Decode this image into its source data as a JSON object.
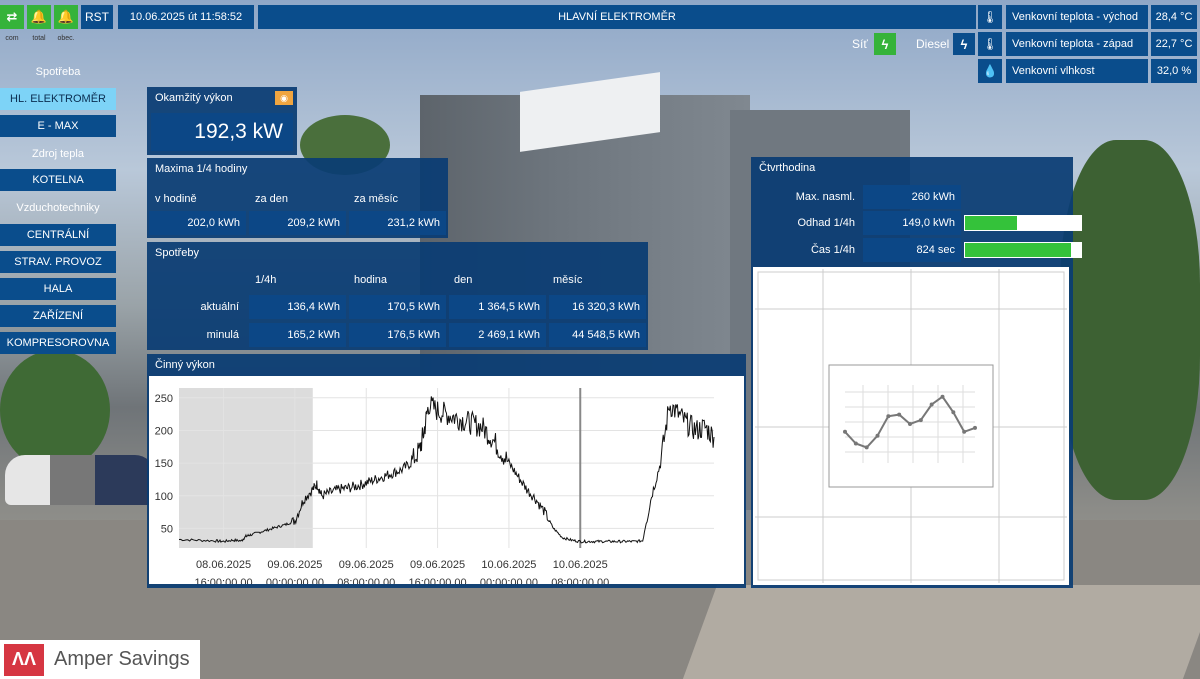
{
  "topbar": {
    "icons": [
      {
        "icon": "arrows-swap-icon",
        "glyph": "⇄",
        "caption": "com"
      },
      {
        "icon": "bell-icon",
        "glyph": "🔔",
        "caption": "total"
      },
      {
        "icon": "bell-icon",
        "glyph": "🔔",
        "caption": "obec."
      }
    ],
    "rst_label": "RST",
    "datetime": "10.06.2025 út 11:58:52",
    "title": "HLAVNÍ ELEKTROMĚR"
  },
  "weather": [
    {
      "icon": "thermometer-icon",
      "label": "Venkovní teplota - východ",
      "value": "28,4 °C"
    },
    {
      "icon": "thermometer-icon",
      "label": "Venkovní teplota - západ",
      "value": "22,7 °C"
    },
    {
      "icon": "droplet-icon",
      "label": "Venkovní vlhkost",
      "value": "32,0 %"
    }
  ],
  "sources": {
    "grid_label": "Síť",
    "diesel_label": "Diesel",
    "grid_color": "#35b33a",
    "diesel_color": "#0a4d8c"
  },
  "sidebar": {
    "groups": [
      {
        "heading": "Spotřeba",
        "items": [
          "HL. ELEKTROMĚR",
          "E - MAX"
        ]
      },
      {
        "heading": "Zdroj tepla",
        "items": [
          "KOTELNA"
        ]
      },
      {
        "heading": "Vzduchotechniky",
        "items": [
          "CENTRÁLNÍ",
          "STRAV. PROVOZ",
          "HALA",
          "ZAŘÍZENÍ",
          "KOMPRESOROVNA"
        ]
      }
    ],
    "active": "HL. ELEKTROMĚR"
  },
  "instant": {
    "title": "Okamžitý výkon",
    "value": "192,3 kW"
  },
  "maxima": {
    "title": "Maxima 1/4 hodiny",
    "headers": [
      "v hodině",
      "za den",
      "za měsíc"
    ],
    "values": [
      "202,0 kWh",
      "209,2 kWh",
      "231,2 kWh"
    ]
  },
  "consumption": {
    "title": "Spotřeby",
    "headers": [
      "1/4h",
      "hodina",
      "den",
      "měsíc"
    ],
    "rows": [
      {
        "label": "aktuální",
        "values": [
          "136,4 kWh",
          "170,5 kWh",
          "1 364,5 kWh",
          "16 320,3 kWh"
        ]
      },
      {
        "label": "minulá",
        "values": [
          "165,2 kWh",
          "176,5 kWh",
          "2 469,1 kWh",
          "44 548,5 kWh"
        ]
      }
    ]
  },
  "quarter": {
    "title": "Čtvrthodina",
    "rows": [
      {
        "label": "Max. nasml.",
        "value": "260 kWh"
      },
      {
        "label": "Odhad 1/4h",
        "value": "149,0 kWh",
        "fraction": 0.45
      },
      {
        "label": "Čas 1/4h",
        "value": "824 sec",
        "fraction": 0.91
      }
    ]
  },
  "chart_data": [
    {
      "type": "line",
      "title": "Činný výkon",
      "ylim": [
        20,
        265
      ],
      "yticks": [
        50,
        100,
        150,
        200,
        250
      ],
      "xlabels": [
        [
          "08.06.2025",
          "16:00:00.00"
        ],
        [
          "09.06.2025",
          "00:00:00.00"
        ],
        [
          "09.06.2025",
          "08:00:00.00"
        ],
        [
          "09.06.2025",
          "16:00:00.00"
        ],
        [
          "10.06.2025",
          "00:00:00.00"
        ],
        [
          "10.06.2025",
          "08:00:00.00"
        ]
      ],
      "x_hours_range": [
        -5,
        55
      ],
      "x_tick_hours": [
        0,
        8,
        16,
        24,
        32,
        40
      ],
      "shaded_hours": [
        -5,
        10
      ],
      "now_line_hours": 40,
      "series": [
        {
          "x": [
            -5,
            -3,
            -1,
            0,
            1,
            2,
            2.5,
            3,
            4,
            5,
            6,
            7,
            8,
            9,
            10,
            10.5,
            11,
            12,
            13,
            14,
            15,
            16,
            17,
            18,
            19,
            20,
            21,
            22,
            22.5,
            23,
            24,
            25,
            26,
            27,
            28,
            29,
            30,
            31,
            32,
            33,
            34,
            35,
            36,
            37,
            38,
            39,
            40,
            41,
            42,
            43,
            44,
            45,
            46,
            47,
            48,
            49,
            50,
            51,
            52,
            53,
            54,
            55
          ],
          "y": [
            33,
            32,
            31,
            30,
            32,
            31,
            38,
            40,
            44,
            48,
            52,
            56,
            62,
            95,
            110,
            118,
            100,
            105,
            110,
            112,
            115,
            120,
            125,
            130,
            135,
            140,
            150,
            170,
            200,
            240,
            230,
            225,
            220,
            215,
            210,
            205,
            190,
            170,
            150,
            130,
            110,
            95,
            75,
            50,
            36,
            32,
            30,
            30,
            30,
            30,
            30,
            30,
            30,
            31,
            100,
            150,
            240,
            225,
            210,
            200,
            205,
            190
          ]
        }
      ]
    },
    {
      "type": "line",
      "title": "",
      "x": [
        0,
        1,
        2,
        3,
        4,
        5,
        6,
        7,
        8,
        9,
        10,
        11,
        12
      ],
      "y": [
        40,
        25,
        20,
        35,
        60,
        62,
        50,
        55,
        75,
        85,
        65,
        40,
        45
      ]
    }
  ]
}
